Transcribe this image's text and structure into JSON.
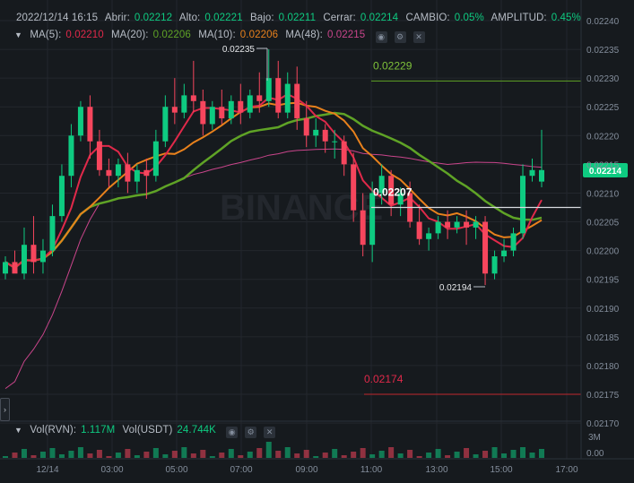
{
  "header": {
    "datetime": "2022/12/14 16:15",
    "open_label": "Abrir:",
    "open": "0.02212",
    "high_label": "Alto:",
    "high": "0.02221",
    "low_label": "Bajo:",
    "low": "0.02211",
    "close_label": "Cerrar:",
    "close": "0.02214",
    "change_label": "CAMBIO:",
    "change": "0.05%",
    "amplitude_label": "AMPLITUD:",
    "amplitude": "0.45%"
  },
  "ma": {
    "ma5_label": "MA(5):",
    "ma5": "0.02210",
    "ma20_label": "MA(20):",
    "ma20": "0.02206",
    "ma10_label": "MA(10):",
    "ma10": "0.02206",
    "ma48_label": "MA(48):",
    "ma48": "0.02215"
  },
  "volume": {
    "vol_label": "Vol(RVN):",
    "vol": "1.117M",
    "volusdt_label": "Vol(USDT)",
    "volusdt": "24.744K",
    "axis": [
      "3M",
      "0.00"
    ]
  },
  "colors": {
    "up": "#0ecb81",
    "down": "#f6465d",
    "ma5": "#e0294a",
    "ma10": "#e8811c",
    "ma20": "#5fa326",
    "ma48": "#c9458b",
    "bg": "#161a1e",
    "grid": "#23272d"
  },
  "watermark": "BINANCE",
  "toggle_icon": "chevron-right-icon",
  "chart_data": {
    "type": "candlestick",
    "y_axis_ticks": [
      "0.02240",
      "0.02235",
      "0.02230",
      "0.02225",
      "0.02220",
      "0.02215",
      "0.02210",
      "0.02205",
      "0.02200",
      "0.02195",
      "0.02190",
      "0.02185",
      "0.02180",
      "0.02175",
      "0.02170"
    ],
    "x_axis_ticks": [
      "12/14",
      "03:00",
      "05:00",
      "07:00",
      "09:00",
      "11:00",
      "13:00",
      "15:00",
      "17:00"
    ],
    "ylim": [
      0.021675,
      0.022425
    ],
    "current_price": "0.02214",
    "annotations": {
      "high_marker": "0.02235",
      "low_marker": "0.02194",
      "line_top": "0.02229",
      "line_bottom": "0.02174",
      "crosshair": "0.02207"
    },
    "candles": [
      [
        0.02196,
        0.02199,
        0.02198,
        0.02195
      ],
      [
        0.02198,
        0.022,
        0.02196,
        0.02197
      ],
      [
        0.02196,
        0.02204,
        0.02201,
        0.02195
      ],
      [
        0.02201,
        0.02206,
        0.02198,
        0.02196
      ],
      [
        0.02198,
        0.02202,
        0.022,
        0.02196
      ],
      [
        0.022,
        0.02208,
        0.02206,
        0.02199
      ],
      [
        0.02206,
        0.02215,
        0.02213,
        0.02205
      ],
      [
        0.02213,
        0.02222,
        0.0222,
        0.02211
      ],
      [
        0.0222,
        0.02226,
        0.02225,
        0.02219
      ],
      [
        0.02225,
        0.02227,
        0.02219,
        0.02216
      ],
      [
        0.02219,
        0.02221,
        0.02214,
        0.02213
      ],
      [
        0.02214,
        0.02216,
        0.02213,
        0.02211
      ],
      [
        0.02213,
        0.02216,
        0.02215,
        0.02211
      ],
      [
        0.02215,
        0.02217,
        0.02212,
        0.0221
      ],
      [
        0.02212,
        0.02215,
        0.02214,
        0.0221
      ],
      [
        0.02214,
        0.02216,
        0.02213,
        0.02209
      ],
      [
        0.02213,
        0.02221,
        0.02219,
        0.02212
      ],
      [
        0.02219,
        0.02227,
        0.02225,
        0.02218
      ],
      [
        0.02225,
        0.0223,
        0.02224,
        0.02222
      ],
      [
        0.02224,
        0.02229,
        0.02227,
        0.02223
      ],
      [
        0.02227,
        0.02233,
        0.02226,
        0.02224
      ],
      [
        0.02226,
        0.02228,
        0.02222,
        0.0222
      ],
      [
        0.02222,
        0.02226,
        0.02225,
        0.02221
      ],
      [
        0.02225,
        0.02228,
        0.02223,
        0.02222
      ],
      [
        0.02223,
        0.02227,
        0.02226,
        0.02222
      ],
      [
        0.02226,
        0.02229,
        0.02224,
        0.02222
      ],
      [
        0.02224,
        0.02228,
        0.02227,
        0.02223
      ],
      [
        0.02227,
        0.02231,
        0.02226,
        0.02224
      ],
      [
        0.02226,
        0.02235,
        0.0223,
        0.02225
      ],
      [
        0.0223,
        0.02233,
        0.02224,
        0.02223
      ],
      [
        0.02224,
        0.02231,
        0.02229,
        0.02223
      ],
      [
        0.02229,
        0.02232,
        0.02223,
        0.02221
      ],
      [
        0.02223,
        0.02226,
        0.0222,
        0.02218
      ],
      [
        0.0222,
        0.02223,
        0.02221,
        0.02218
      ],
      [
        0.02221,
        0.02222,
        0.02219,
        0.02217
      ],
      [
        0.02219,
        0.02221,
        0.02219,
        0.02216
      ],
      [
        0.02219,
        0.0222,
        0.02215,
        0.02213
      ],
      [
        0.02215,
        0.02217,
        0.02207,
        0.02205
      ],
      [
        0.02207,
        0.0221,
        0.02201,
        0.02199
      ],
      [
        0.02201,
        0.02212,
        0.0221,
        0.02198
      ],
      [
        0.0221,
        0.02215,
        0.02213,
        0.02208
      ],
      [
        0.02213,
        0.02214,
        0.02208,
        0.02206
      ],
      [
        0.02208,
        0.02211,
        0.0221,
        0.02206
      ],
      [
        0.0221,
        0.02212,
        0.02205,
        0.02204
      ],
      [
        0.02205,
        0.02208,
        0.02202,
        0.02201
      ],
      [
        0.02202,
        0.02204,
        0.02203,
        0.022
      ],
      [
        0.02203,
        0.02206,
        0.02205,
        0.02202
      ],
      [
        0.02205,
        0.02207,
        0.02204,
        0.02202
      ],
      [
        0.02204,
        0.02206,
        0.02205,
        0.02203
      ],
      [
        0.02205,
        0.02207,
        0.02204,
        0.02201
      ],
      [
        0.02204,
        0.02206,
        0.02205,
        0.02202
      ],
      [
        0.02205,
        0.02206,
        0.02196,
        0.02194
      ],
      [
        0.02196,
        0.022,
        0.02199,
        0.02195
      ],
      [
        0.02199,
        0.02202,
        0.022,
        0.02198
      ],
      [
        0.022,
        0.02204,
        0.02203,
        0.02199
      ],
      [
        0.02203,
        0.02215,
        0.02213,
        0.02202
      ],
      [
        0.02213,
        0.02216,
        0.02214,
        0.02212
      ],
      [
        0.02212,
        0.02221,
        0.02214,
        0.02211
      ]
    ]
  }
}
